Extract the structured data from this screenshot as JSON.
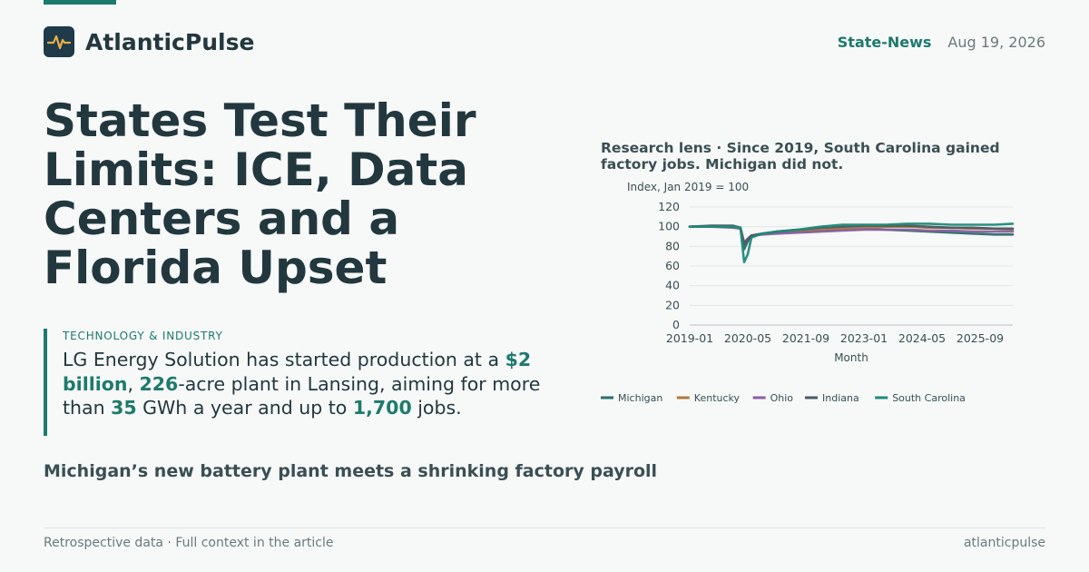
{
  "brand": {
    "name": "AtlanticPulse",
    "logo_icon": "pulse-icon"
  },
  "header": {
    "section": "State-News",
    "date": "Aug 19, 2026"
  },
  "headline": "States Test Their Limits: ICE, Data Centers and a Florida Upset",
  "callout": {
    "kicker": "TECHNOLOGY & INDUSTRY",
    "parts": [
      {
        "text": "LG Energy Solution has started production at a ",
        "hl": false
      },
      {
        "text": "$2 billion",
        "hl": true
      },
      {
        "text": ", ",
        "hl": false
      },
      {
        "text": "226",
        "hl": true
      },
      {
        "text": "-acre plant in Lansing, aiming for more than ",
        "hl": false
      },
      {
        "text": "35",
        "hl": true
      },
      {
        "text": " GWh a year and up to ",
        "hl": false
      },
      {
        "text": "1,700",
        "hl": true
      },
      {
        "text": " jobs.",
        "hl": false
      }
    ]
  },
  "subhead": "Michigan’s new battery plant meets a shrinking factory payroll",
  "footer": {
    "left": "Retrospective data · Full context in the article",
    "right": "atlanticpulse"
  },
  "colors": {
    "accent": "#1d7a6c",
    "text": "#22383e",
    "muted": "#6a7a7e"
  },
  "chart_data": {
    "type": "line",
    "title": "Research lens · Since 2019, South Carolina gained factory jobs. Michigan did not.",
    "ylabel": "Index, Jan 2019 = 100",
    "xlabel": "Month",
    "ylim": [
      0,
      120
    ],
    "yticks": [
      0,
      20,
      40,
      60,
      80,
      100,
      120
    ],
    "xticks": [
      "2019-01",
      "2020-05",
      "2021-09",
      "2023-01",
      "2024-05",
      "2025-09"
    ],
    "grid": true,
    "legend_position": "bottom",
    "x": [
      "2019-01",
      "2019-07",
      "2020-01",
      "2020-03",
      "2020-04",
      "2020-05",
      "2020-06",
      "2020-09",
      "2021-01",
      "2021-07",
      "2022-01",
      "2022-07",
      "2023-01",
      "2023-07",
      "2024-01",
      "2024-07",
      "2025-01",
      "2025-07",
      "2026-01",
      "2026-06"
    ],
    "series": [
      {
        "name": "Michigan",
        "color": "#2a6f6a",
        "values": [
          100,
          100,
          100,
          98,
          77,
          85,
          90,
          93,
          94,
          95,
          96,
          97,
          98,
          97,
          96,
          95,
          94,
          93,
          92,
          92
        ]
      },
      {
        "name": "Kentucky",
        "color": "#b07a3a",
        "values": [
          100,
          100,
          100,
          99,
          82,
          87,
          91,
          93,
          94,
          96,
          97,
          98,
          99,
          100,
          100,
          99,
          99,
          98,
          98,
          97
        ]
      },
      {
        "name": "Ohio",
        "color": "#8a5fa0",
        "values": [
          100,
          100,
          99,
          98,
          84,
          88,
          91,
          92,
          93,
          94,
          95,
          96,
          97,
          97,
          97,
          96,
          96,
          95,
          95,
          95
        ]
      },
      {
        "name": "Indiana",
        "color": "#4a5a66",
        "values": [
          100,
          101,
          101,
          99,
          82,
          87,
          91,
          93,
          95,
          97,
          99,
          100,
          101,
          101,
          101,
          100,
          99,
          99,
          98,
          98
        ]
      },
      {
        "name": "South Carolina",
        "color": "#1f8a78",
        "values": [
          100,
          100,
          100,
          99,
          64,
          72,
          89,
          93,
          95,
          97,
          100,
          102,
          102,
          102,
          103,
          103,
          102,
          102,
          102,
          103
        ]
      }
    ]
  }
}
